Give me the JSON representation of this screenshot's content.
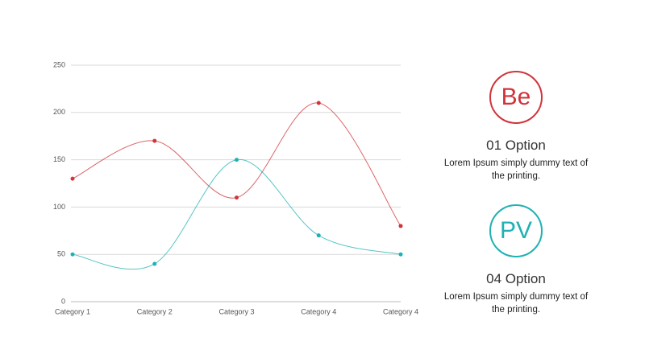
{
  "chart_data": {
    "type": "line",
    "categories": [
      "Category 1",
      "Category 2",
      "Category 3",
      "Category 4",
      "Category 4"
    ],
    "series": [
      {
        "color": "#d0343a",
        "values": [
          130,
          170,
          110,
          210,
          80
        ]
      },
      {
        "color": "#1fb1b3",
        "values": [
          50,
          40,
          150,
          70,
          50
        ]
      }
    ],
    "ylim": [
      0,
      250
    ],
    "yticks": [
      0,
      50,
      100,
      150,
      200,
      250
    ],
    "grid": true,
    "smooth": true
  },
  "options": [
    {
      "icon": "Be",
      "color": "#d0343a",
      "title": "01 Option",
      "text": "Lorem Ipsum simply dummy text of the printing."
    },
    {
      "icon": "PV",
      "color": "#1fb1b3",
      "title": "04 Option",
      "text": "Lorem Ipsum simply dummy text of the printing."
    }
  ]
}
